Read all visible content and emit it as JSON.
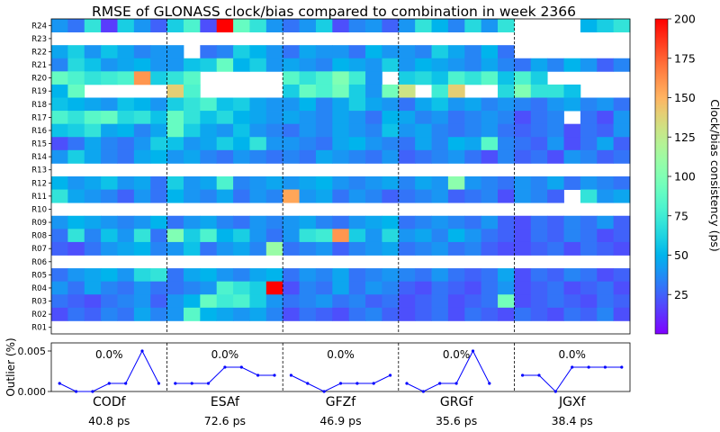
{
  "chart_data": [
    {
      "type": "heatmap",
      "title": "RMSE of GLONASS clock/bias compared to combination in week 2366",
      "rows": [
        "R24",
        "R23",
        "R22",
        "R21",
        "R20",
        "R19",
        "R18",
        "R17",
        "R16",
        "R15",
        "R14",
        "R13",
        "R12",
        "R11",
        "R10",
        "R09",
        "R08",
        "R07",
        "R06",
        "R05",
        "R04",
        "R03",
        "R02",
        "R01"
      ],
      "groups": [
        "CODf",
        "ESAf",
        "GFZf",
        "GRGf",
        "JGXf"
      ],
      "days_per_group": 7,
      "colorbar": {
        "label": "Clock/bias consistency (ps)",
        "ticks": [
          25,
          50,
          75,
          100,
          125,
          150,
          175,
          200
        ],
        "range": [
          0,
          200
        ],
        "colormap": "rainbow"
      },
      "cells_ps": [
        [
          40,
          30,
          70,
          15,
          60,
          40,
          25,
          60,
          80,
          20,
          210,
          90,
          70,
          40,
          30,
          40,
          60,
          20,
          35,
          40,
          25,
          40,
          70,
          50,
          35,
          65,
          40,
          70,
          null,
          null,
          null,
          null,
          50,
          60,
          70
        ],
        [
          null,
          null,
          null,
          null,
          null,
          null,
          null,
          null,
          null,
          null,
          null,
          null,
          null,
          null,
          null,
          null,
          null,
          null,
          null,
          null,
          null,
          null,
          null,
          null,
          null,
          null,
          null,
          null,
          null,
          null,
          null,
          null,
          null,
          null,
          null
        ],
        [
          45,
          60,
          40,
          55,
          45,
          35,
          40,
          40,
          null,
          30,
          35,
          60,
          50,
          40,
          30,
          45,
          40,
          40,
          30,
          50,
          40,
          40,
          35,
          60,
          45,
          35,
          50,
          30,
          null,
          null,
          null,
          null,
          null,
          null,
          null
        ],
        [
          35,
          65,
          55,
          40,
          45,
          50,
          40,
          40,
          55,
          60,
          90,
          50,
          60,
          40,
          45,
          40,
          35,
          50,
          45,
          40,
          60,
          40,
          50,
          45,
          40,
          35,
          45,
          35,
          30,
          45,
          35,
          50,
          40,
          25,
          35
        ],
        [
          90,
          80,
          70,
          75,
          80,
          160,
          60,
          70,
          85,
          null,
          null,
          null,
          null,
          null,
          85,
          70,
          80,
          100,
          75,
          40,
          null,
          60,
          65,
          55,
          80,
          70,
          85,
          55,
          80,
          60,
          null,
          null,
          null,
          null,
          null
        ],
        [
          50,
          90,
          null,
          null,
          null,
          null,
          null,
          140,
          80,
          null,
          null,
          null,
          null,
          null,
          60,
          90,
          80,
          95,
          60,
          40,
          95,
          130,
          null,
          75,
          140,
          null,
          null,
          65,
          100,
          70,
          70,
          55,
          null,
          null,
          null
        ],
        [
          55,
          50,
          45,
          40,
          55,
          50,
          40,
          60,
          70,
          80,
          55,
          60,
          45,
          40,
          40,
          50,
          35,
          45,
          60,
          45,
          40,
          30,
          45,
          55,
          40,
          45,
          35,
          40,
          35,
          30,
          40,
          45,
          35,
          40,
          30
        ],
        [
          80,
          70,
          85,
          90,
          65,
          70,
          55,
          90,
          70,
          55,
          65,
          50,
          45,
          40,
          45,
          40,
          35,
          45,
          40,
          30,
          50,
          45,
          35,
          40,
          30,
          35,
          40,
          35,
          20,
          30,
          35,
          null,
          30,
          20,
          40
        ],
        [
          55,
          60,
          70,
          45,
          50,
          35,
          45,
          90,
          60,
          45,
          40,
          55,
          40,
          35,
          30,
          40,
          35,
          45,
          40,
          35,
          55,
          40,
          45,
          35,
          30,
          35,
          40,
          30,
          25,
          30,
          35,
          20,
          30,
          25,
          40
        ],
        [
          20,
          30,
          45,
          35,
          30,
          40,
          60,
          55,
          40,
          45,
          60,
          50,
          70,
          40,
          40,
          35,
          30,
          45,
          50,
          40,
          35,
          30,
          45,
          35,
          50,
          45,
          85,
          35,
          30,
          25,
          40,
          20,
          30,
          45,
          25
        ],
        [
          40,
          60,
          45,
          35,
          30,
          45,
          50,
          40,
          45,
          35,
          30,
          40,
          35,
          30,
          35,
          30,
          45,
          40,
          35,
          30,
          40,
          25,
          30,
          35,
          40,
          30,
          20,
          35,
          25,
          30,
          20,
          40,
          35,
          25,
          30
        ],
        [
          null,
          null,
          null,
          null,
          null,
          null,
          null,
          null,
          null,
          null,
          null,
          null,
          null,
          null,
          null,
          null,
          null,
          null,
          null,
          null,
          null,
          null,
          null,
          null,
          null,
          null,
          null,
          null,
          null,
          null,
          null,
          null,
          null,
          null,
          null
        ],
        [
          50,
          40,
          45,
          55,
          40,
          45,
          30,
          60,
          40,
          45,
          80,
          35,
          40,
          45,
          40,
          45,
          50,
          40,
          35,
          40,
          45,
          35,
          45,
          40,
          105,
          40,
          35,
          30,
          40,
          35,
          45,
          30,
          40,
          35,
          30
        ],
        [
          70,
          45,
          40,
          35,
          25,
          40,
          30,
          50,
          40,
          35,
          45,
          30,
          40,
          35,
          155,
          40,
          45,
          30,
          40,
          35,
          25,
          30,
          35,
          40,
          25,
          30,
          35,
          20,
          40,
          35,
          25,
          null,
          70,
          40,
          45
        ],
        [
          null,
          null,
          null,
          null,
          null,
          null,
          null,
          null,
          null,
          null,
          null,
          null,
          null,
          null,
          null,
          null,
          null,
          null,
          null,
          null,
          null,
          null,
          null,
          null,
          null,
          null,
          null,
          null,
          null,
          null,
          null,
          null,
          null,
          null,
          null
        ],
        [
          40,
          50,
          45,
          40,
          35,
          40,
          50,
          30,
          40,
          45,
          35,
          30,
          40,
          35,
          40,
          45,
          35,
          30,
          40,
          45,
          50,
          30,
          35,
          40,
          35,
          30,
          40,
          25,
          20,
          30,
          25,
          35,
          30,
          40,
          25
        ],
        [
          30,
          70,
          35,
          55,
          40,
          70,
          30,
          100,
          60,
          80,
          50,
          60,
          40,
          30,
          40,
          70,
          75,
          160,
          60,
          40,
          65,
          40,
          45,
          35,
          50,
          40,
          30,
          25,
          20,
          30,
          25,
          35,
          30,
          20,
          25
        ],
        [
          25,
          20,
          30,
          40,
          45,
          50,
          35,
          40,
          55,
          30,
          40,
          45,
          35,
          110,
          30,
          35,
          40,
          25,
          35,
          40,
          45,
          30,
          35,
          40,
          30,
          35,
          25,
          20,
          20,
          25,
          30,
          20,
          30,
          25,
          20
        ],
        [
          null,
          null,
          null,
          null,
          null,
          null,
          null,
          null,
          null,
          null,
          null,
          null,
          null,
          null,
          null,
          null,
          null,
          null,
          null,
          null,
          null,
          null,
          null,
          null,
          null,
          null,
          null,
          null,
          null,
          null,
          null,
          null,
          null,
          null,
          null
        ],
        [
          30,
          40,
          45,
          50,
          40,
          65,
          70,
          30,
          45,
          50,
          40,
          35,
          45,
          50,
          30,
          40,
          35,
          45,
          30,
          35,
          40,
          35,
          30,
          40,
          30,
          25,
          30,
          45,
          20,
          30,
          25,
          35,
          30,
          20,
          25
        ],
        [
          40,
          30,
          45,
          35,
          30,
          40,
          30,
          30,
          35,
          40,
          80,
          70,
          60,
          215,
          20,
          35,
          30,
          45,
          30,
          40,
          35,
          25,
          20,
          30,
          25,
          20,
          30,
          40,
          20,
          25,
          30,
          20,
          25,
          30,
          20
        ],
        [
          30,
          25,
          20,
          30,
          35,
          40,
          25,
          40,
          50,
          90,
          75,
          80,
          60,
          40,
          30,
          35,
          40,
          30,
          35,
          25,
          30,
          20,
          25,
          30,
          20,
          25,
          30,
          95,
          20,
          25,
          30,
          25,
          20,
          30,
          25
        ],
        [
          20,
          30,
          25,
          35,
          30,
          45,
          35,
          40,
          85,
          50,
          45,
          40,
          45,
          35,
          20,
          30,
          25,
          20,
          30,
          35,
          25,
          20,
          25,
          30,
          20,
          30,
          25,
          20,
          30,
          25,
          20,
          30,
          25,
          35,
          20
        ],
        [
          null,
          null,
          null,
          null,
          null,
          null,
          null,
          null,
          null,
          null,
          null,
          null,
          null,
          null,
          null,
          null,
          null,
          null,
          null,
          null,
          null,
          null,
          null,
          null,
          null,
          null,
          null,
          null,
          null,
          null,
          null,
          null,
          null,
          null,
          null
        ]
      ]
    },
    {
      "type": "line",
      "ylabel": "Outlier (%)",
      "yticks": [
        "0.000",
        "0.005"
      ],
      "ylim": [
        0,
        0.006
      ],
      "categories": [
        "CODf",
        "ESAf",
        "GFZf",
        "GRGf",
        "JGXf"
      ],
      "outlier_labels": [
        "0.0%",
        "0.0%",
        "0.0%",
        "0.0%",
        "0.0%"
      ],
      "rms_labels": [
        "40.8 ps",
        "72.6 ps",
        "46.9 ps",
        "35.6 ps",
        "38.4 ps"
      ],
      "series": [
        {
          "values": [
            [
              0.001,
              0.0,
              0.0,
              0.001,
              0.001,
              0.005,
              0.001
            ],
            [
              0.001,
              0.001,
              0.001,
              0.003,
              0.003,
              0.002,
              0.002
            ],
            [
              0.002,
              0.001,
              0.0,
              0.001,
              0.001,
              0.001,
              0.002
            ],
            [
              0.001,
              0.0,
              0.001,
              0.001,
              0.005,
              0.001,
              null
            ],
            [
              0.002,
              0.002,
              0.0,
              0.003,
              0.003,
              0.003,
              0.003
            ]
          ]
        }
      ],
      "color": "#0000ff"
    }
  ]
}
